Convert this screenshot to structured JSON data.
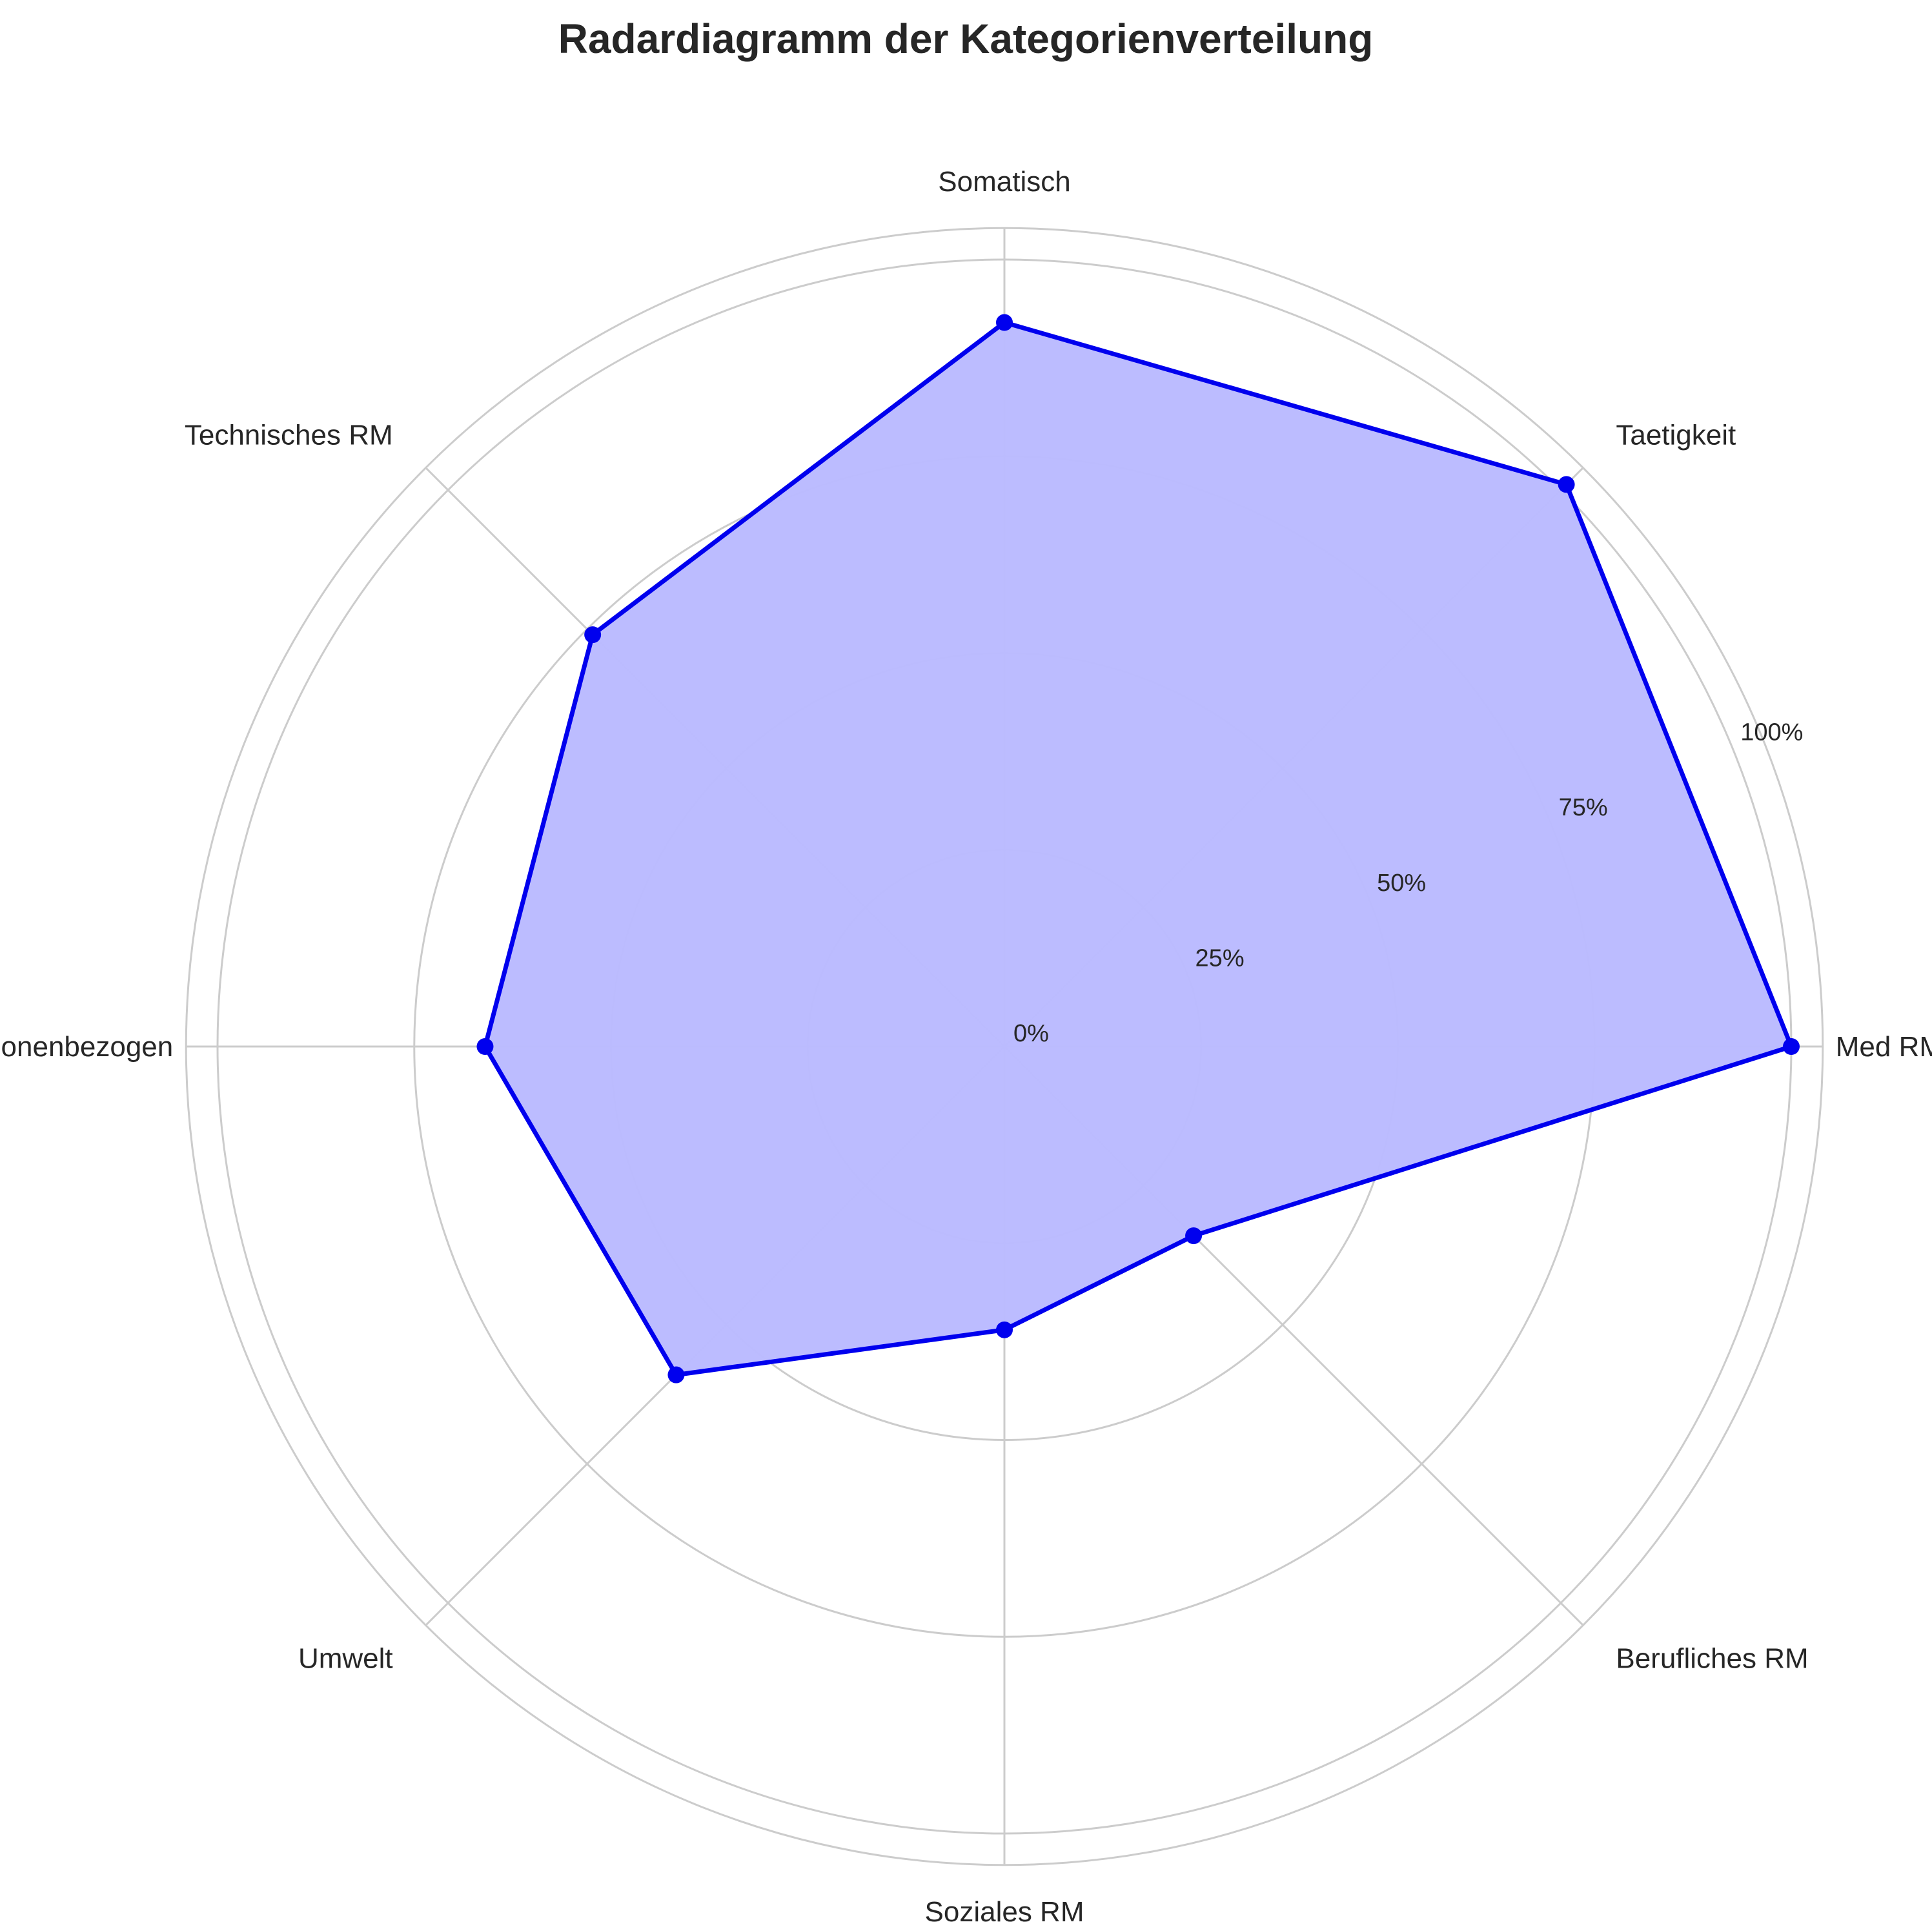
{
  "chart_data": {
    "type": "radar",
    "title": "Radardiagramm der Kategorienverteilung",
    "categories": [
      "Med RM",
      "Taetigkeit",
      "Somatisch",
      "Technisches RM",
      "Personenbezogen",
      "Umwelt",
      "Soziales RM",
      "Berufliches RM"
    ],
    "series": [
      {
        "values": [
          100,
          101,
          92,
          74,
          66,
          59,
          36,
          34
        ]
      }
    ],
    "r_ticks": [
      0,
      25,
      50,
      75,
      100
    ],
    "r_tick_labels": [
      "0%",
      "25%",
      "50%",
      "75%",
      "100%"
    ],
    "rlim": [
      0,
      104
    ],
    "grid": true,
    "colors": {
      "line": "#0000ee",
      "fill": "#bbbbff",
      "marker": "#0000ee",
      "grid": "#cccccc"
    }
  }
}
